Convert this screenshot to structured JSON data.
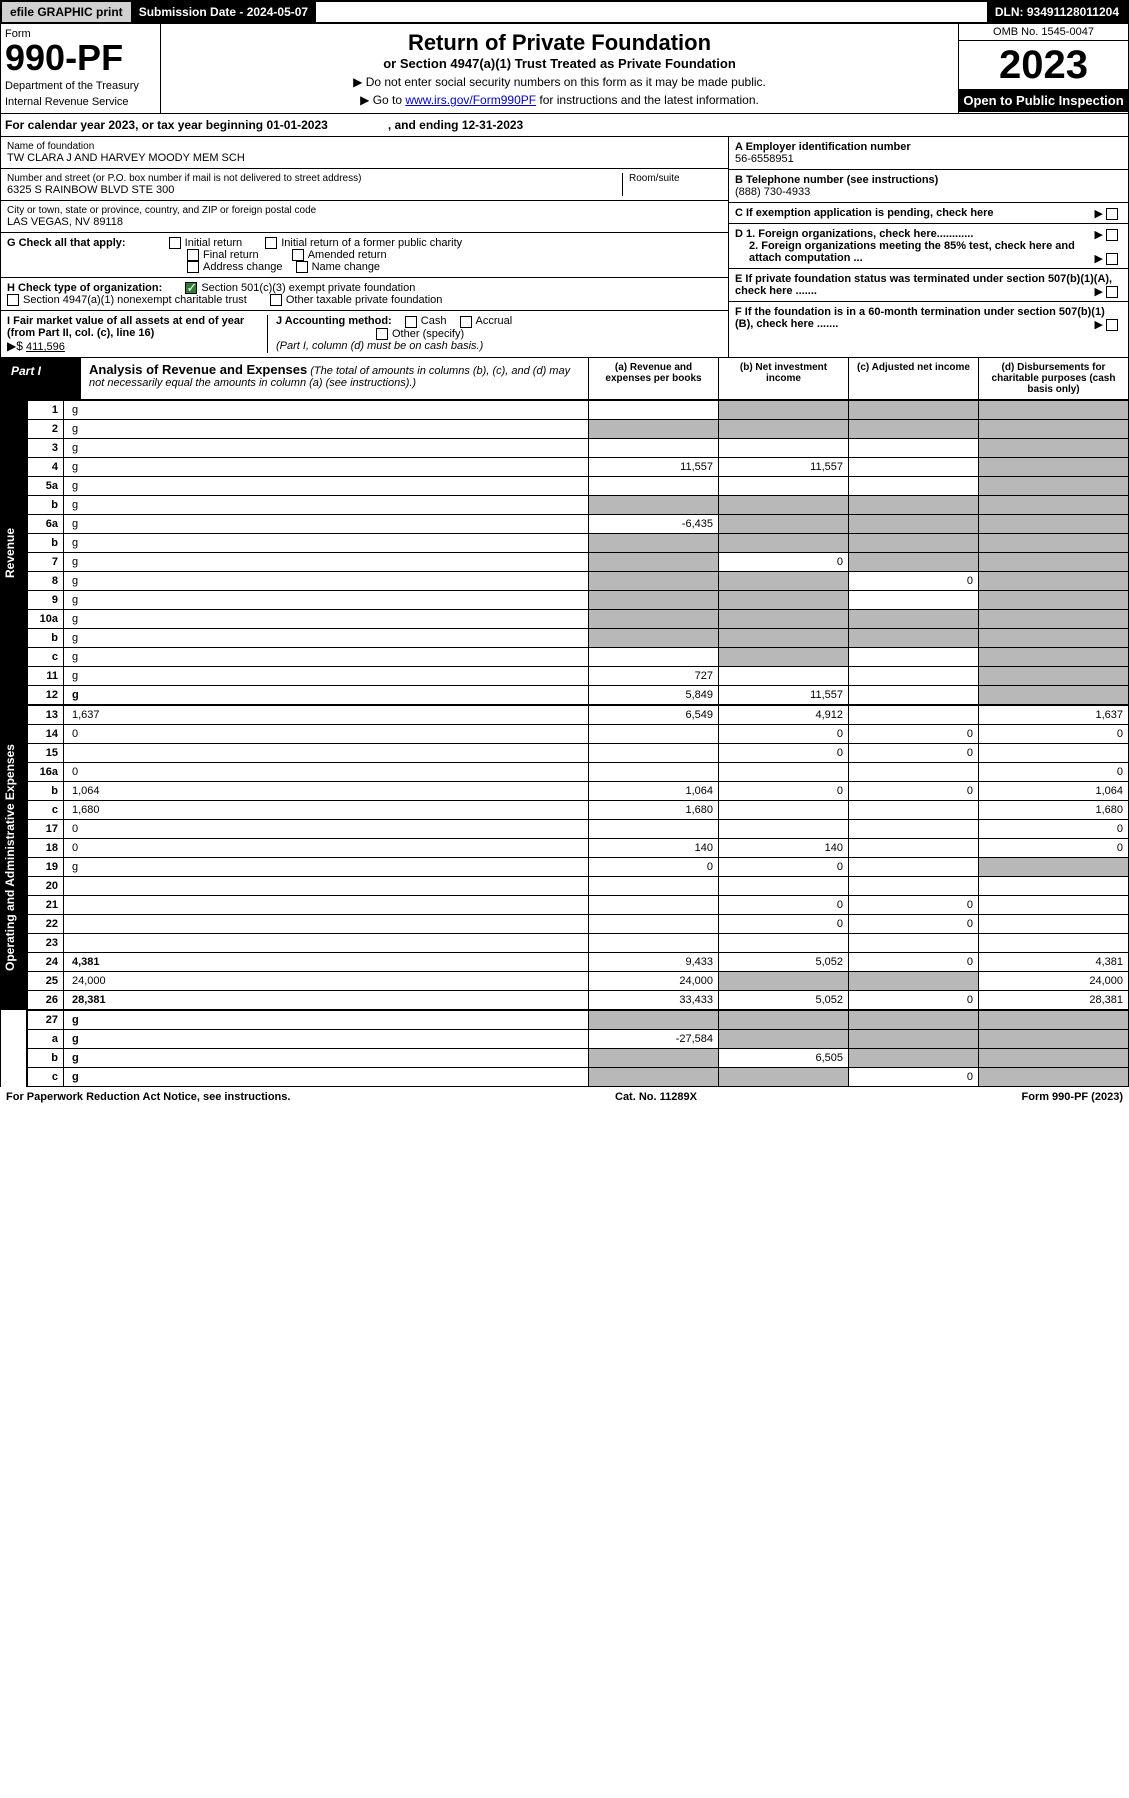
{
  "topbar": {
    "efile": "efile GRAPHIC print",
    "subdate_lbl": "Submission Date - 2024-05-07",
    "dln": "DLN: 93491128011204"
  },
  "header": {
    "form": "Form",
    "num": "990-PF",
    "dept": "Department of the Treasury",
    "irs": "Internal Revenue Service",
    "title": "Return of Private Foundation",
    "subtitle": "or Section 4947(a)(1) Trust Treated as Private Foundation",
    "inst1": "▶ Do not enter social security numbers on this form as it may be made public.",
    "inst2": "▶ Go to ",
    "link": "www.irs.gov/Form990PF",
    "inst3": " for instructions and the latest information.",
    "omb": "OMB No. 1545-0047",
    "year": "2023",
    "open": "Open to Public Inspection"
  },
  "cal": {
    "a": "For calendar year 2023, or tax year beginning 01-01-2023",
    "b": ", and ending 12-31-2023"
  },
  "id": {
    "name_lbl": "Name of foundation",
    "name": "TW CLARA J AND HARVEY MOODY MEM SCH",
    "addr_lbl": "Number and street (or P.O. box number if mail is not delivered to street address)",
    "addr": "6325 S RAINBOW BLVD STE 300",
    "room_lbl": "Room/suite",
    "city_lbl": "City or town, state or province, country, and ZIP or foreign postal code",
    "city": "LAS VEGAS, NV  89118",
    "a_lbl": "A Employer identification number",
    "a": "56-6558951",
    "b_lbl": "B Telephone number (see instructions)",
    "b": "(888) 730-4933",
    "c_lbl": "C If exemption application is pending, check here",
    "d1": "D 1. Foreign organizations, check here............",
    "d2": "2. Foreign organizations meeting the 85% test, check here and attach computation ...",
    "e": "E  If private foundation status was terminated under section 507(b)(1)(A), check here .......",
    "f": "F  If the foundation is in a 60-month termination under section 507(b)(1)(B), check here .......",
    "g_lbl": "G Check all that apply:",
    "g_opts": [
      "Initial return",
      "Initial return of a former public charity",
      "Final return",
      "Amended return",
      "Address change",
      "Name change"
    ],
    "h_lbl": "H Check type of organization:",
    "h1": "Section 501(c)(3) exempt private foundation",
    "h2": "Section 4947(a)(1) nonexempt charitable trust",
    "h3": "Other taxable private foundation",
    "i_lbl": "I Fair market value of all assets at end of year (from Part II, col. (c), line 16)",
    "i_arrow": "▶$",
    "i_val": "411,596",
    "j_lbl": "J Accounting method:",
    "j1": "Cash",
    "j2": "Accrual",
    "j3": "Other (specify)",
    "j_note": "(Part I, column (d) must be on cash basis.)"
  },
  "part1": {
    "lbl": "Part I",
    "title": "Analysis of Revenue and Expenses",
    "note": "(The total of amounts in columns (b), (c), and (d) may not necessarily equal the amounts in column (a) (see instructions).)",
    "cols": {
      "a": "(a)   Revenue and expenses per books",
      "b": "(b)   Net investment income",
      "c": "(c)   Adjusted net income",
      "d": "(d)   Disbursements for charitable purposes (cash basis only)"
    }
  },
  "sections": {
    "rev": "Revenue",
    "exp": "Operating and Administrative Expenses"
  },
  "rows": [
    {
      "n": "1",
      "d": "g",
      "a": "",
      "b": "g",
      "c": "g"
    },
    {
      "n": "2",
      "d": "g",
      "a": "g",
      "b": "g",
      "c": "g"
    },
    {
      "n": "3",
      "d": "g",
      "a": "",
      "b": "",
      "c": ""
    },
    {
      "n": "4",
      "d": "g",
      "a": "11,557",
      "b": "11,557",
      "c": ""
    },
    {
      "n": "5a",
      "d": "g",
      "a": "",
      "b": "",
      "c": ""
    },
    {
      "n": "b",
      "d": "g",
      "a": "g",
      "b": "g",
      "c": "g"
    },
    {
      "n": "6a",
      "d": "g",
      "a": "-6,435",
      "b": "g",
      "c": "g"
    },
    {
      "n": "b",
      "d": "g",
      "a": "g",
      "b": "g",
      "c": "g"
    },
    {
      "n": "7",
      "d": "g",
      "a": "g",
      "b": "0",
      "c": "g"
    },
    {
      "n": "8",
      "d": "g",
      "a": "g",
      "b": "g",
      "c": "0"
    },
    {
      "n": "9",
      "d": "g",
      "a": "g",
      "b": "g",
      "c": ""
    },
    {
      "n": "10a",
      "d": "g",
      "a": "g",
      "b": "g",
      "c": "g"
    },
    {
      "n": "b",
      "d": "g",
      "a": "g",
      "b": "g",
      "c": "g"
    },
    {
      "n": "c",
      "d": "g",
      "a": "",
      "b": "g",
      "c": ""
    },
    {
      "n": "11",
      "d": "g",
      "a": "727",
      "b": "",
      "c": ""
    },
    {
      "n": "12",
      "d": "g",
      "a": "5,849",
      "b": "11,557",
      "c": "",
      "bold": true
    }
  ],
  "exprows": [
    {
      "n": "13",
      "d": "1,637",
      "a": "6,549",
      "b": "4,912",
      "c": ""
    },
    {
      "n": "14",
      "d": "0",
      "a": "",
      "b": "0",
      "c": "0"
    },
    {
      "n": "15",
      "d": "",
      "a": "",
      "b": "0",
      "c": "0"
    },
    {
      "n": "16a",
      "d": "0",
      "a": "",
      "b": "",
      "c": ""
    },
    {
      "n": "b",
      "d": "1,064",
      "a": "1,064",
      "b": "0",
      "c": "0"
    },
    {
      "n": "c",
      "d": "1,680",
      "a": "1,680",
      "b": "",
      "c": ""
    },
    {
      "n": "17",
      "d": "0",
      "a": "",
      "b": "",
      "c": ""
    },
    {
      "n": "18",
      "d": "0",
      "a": "140",
      "b": "140",
      "c": ""
    },
    {
      "n": "19",
      "d": "g",
      "a": "0",
      "b": "0",
      "c": ""
    },
    {
      "n": "20",
      "d": "",
      "a": "",
      "b": "",
      "c": ""
    },
    {
      "n": "21",
      "d": "",
      "a": "",
      "b": "0",
      "c": "0"
    },
    {
      "n": "22",
      "d": "",
      "a": "",
      "b": "0",
      "c": "0"
    },
    {
      "n": "23",
      "d": "",
      "a": "",
      "b": "",
      "c": ""
    },
    {
      "n": "24",
      "d": "4,381",
      "a": "9,433",
      "b": "5,052",
      "c": "0",
      "bold": true
    },
    {
      "n": "25",
      "d": "24,000",
      "a": "24,000",
      "b": "g",
      "c": "g"
    },
    {
      "n": "26",
      "d": "28,381",
      "a": "33,433",
      "b": "5,052",
      "c": "0",
      "bold": true
    }
  ],
  "netrows": [
    {
      "n": "27",
      "d": "g",
      "a": "g",
      "b": "g",
      "c": "g",
      "bold": true
    },
    {
      "n": "a",
      "d": "g",
      "a": "-27,584",
      "b": "g",
      "c": "g",
      "bold": true
    },
    {
      "n": "b",
      "d": "g",
      "a": "g",
      "b": "6,505",
      "c": "g",
      "bold": true
    },
    {
      "n": "c",
      "d": "g",
      "a": "g",
      "b": "g",
      "c": "0",
      "bold": true
    }
  ],
  "footer": {
    "l": "For Paperwork Reduction Act Notice, see instructions.",
    "c": "Cat. No. 11289X",
    "r": "Form 990-PF (2023)"
  }
}
